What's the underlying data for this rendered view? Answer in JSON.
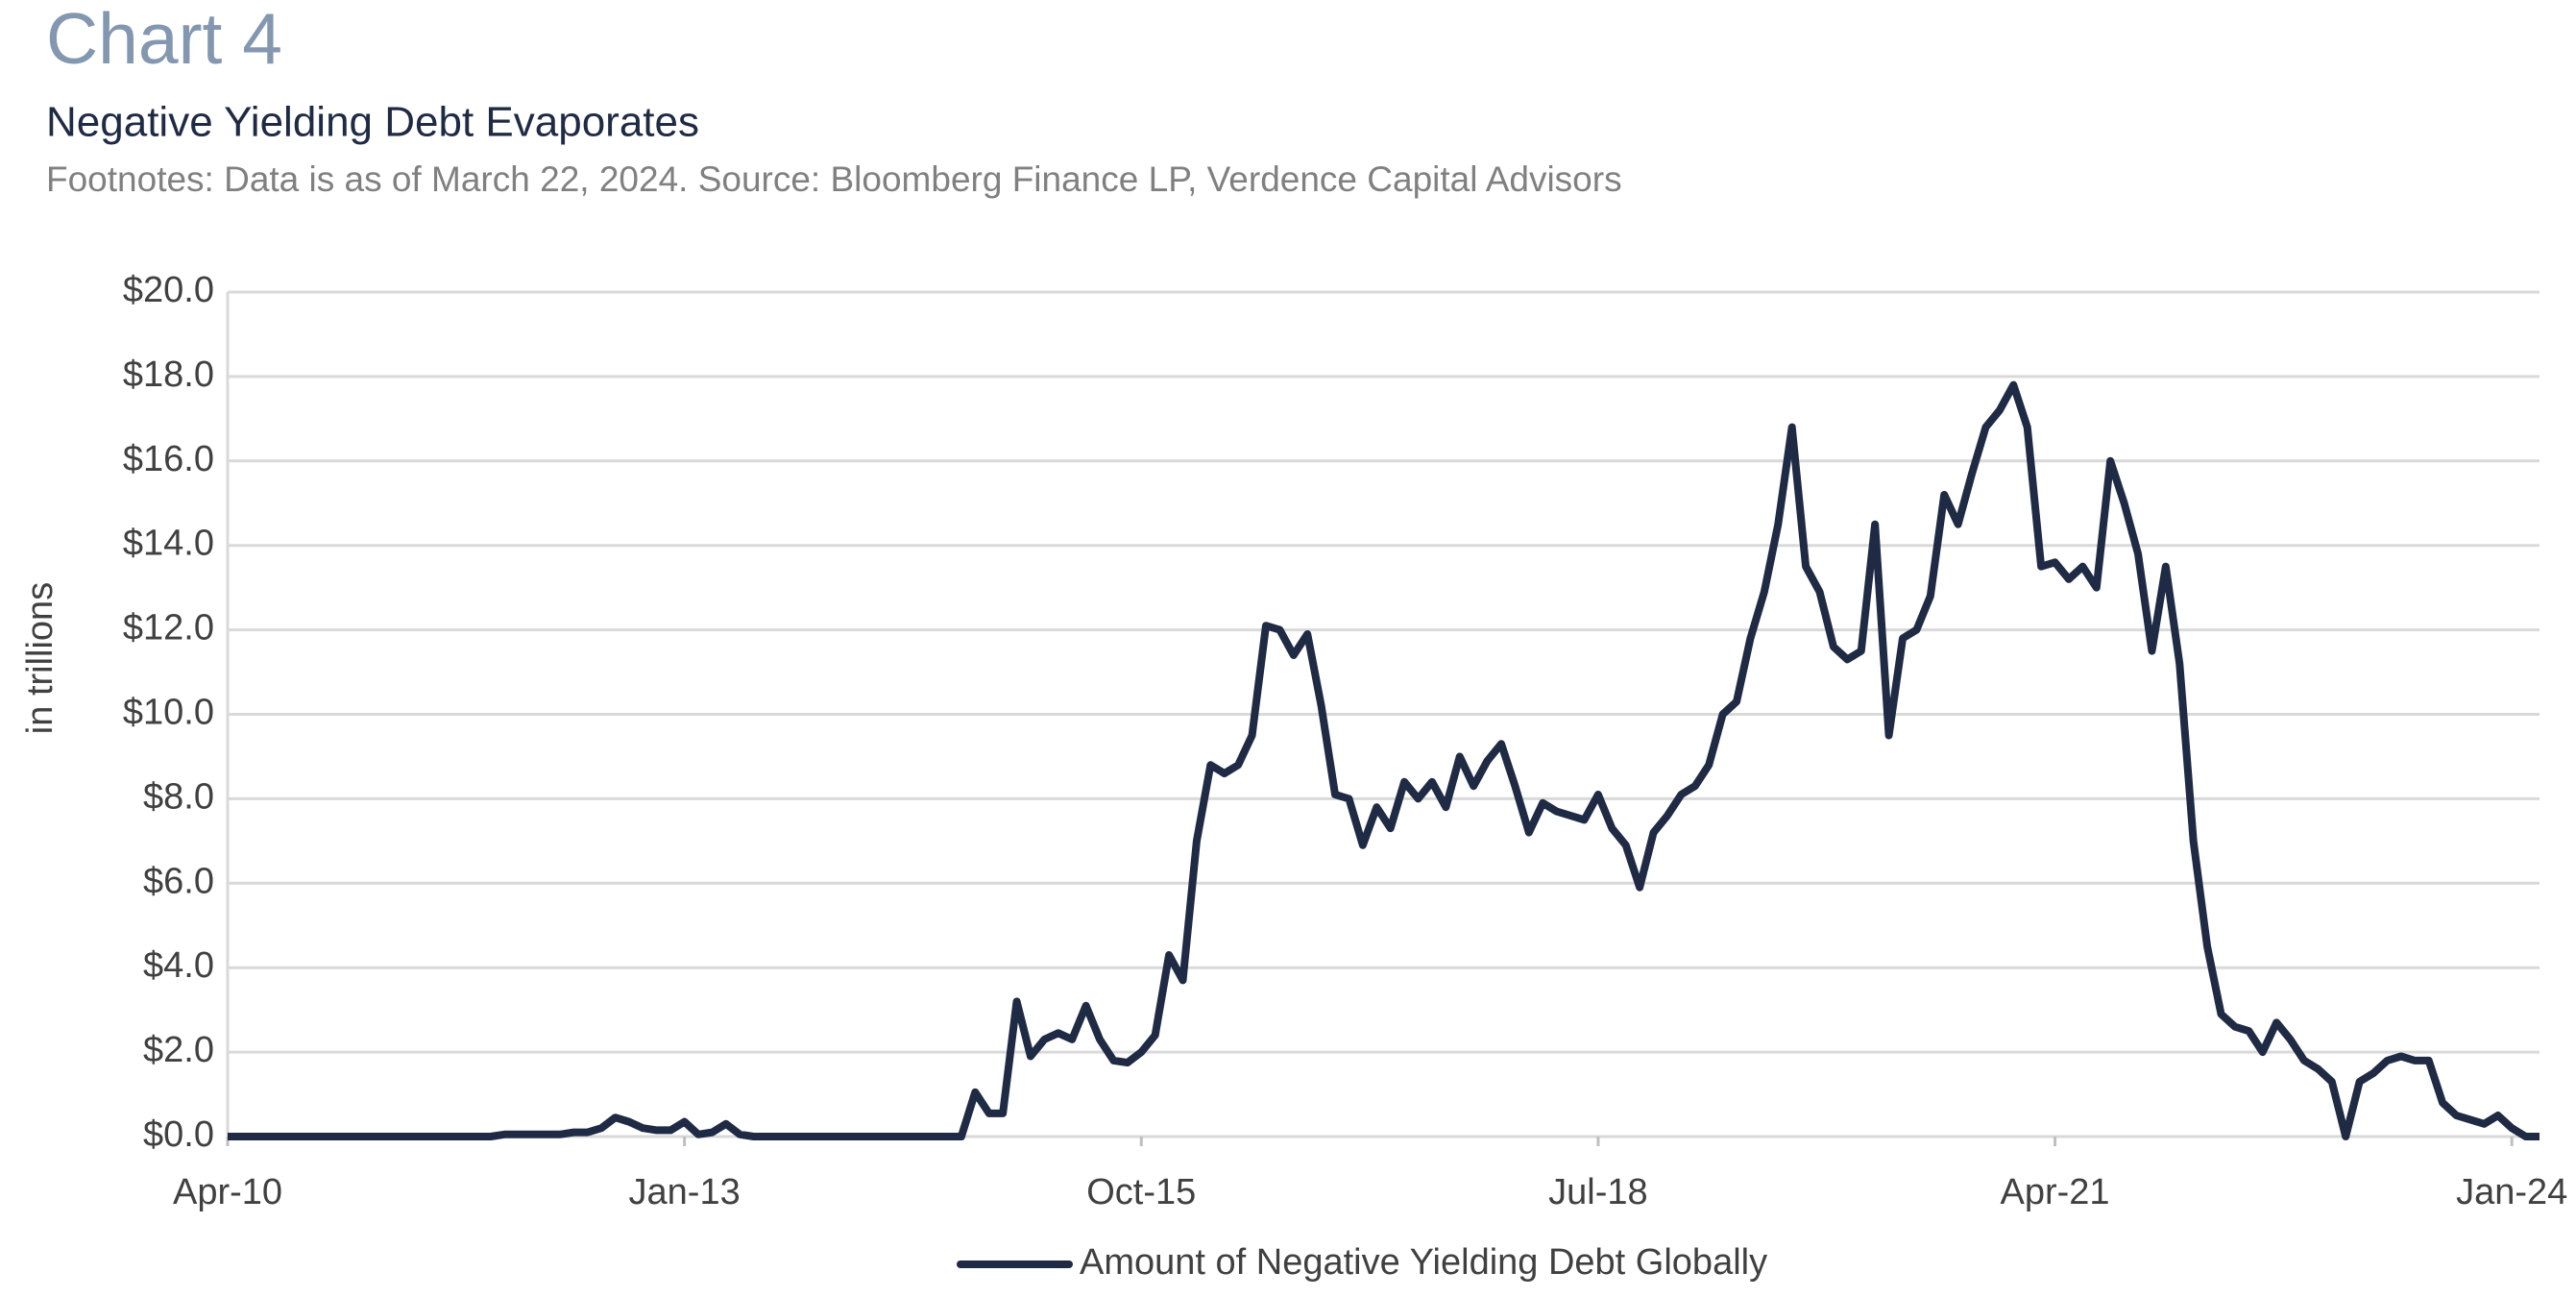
{
  "chart_data": {
    "type": "line",
    "title": "Chart 4",
    "subtitle": "Negative Yielding Debt Evaporates",
    "footnote": "Footnotes: Data is as of March 22, 2024. Source: Bloomberg Finance LP, Verdence Capital Advisors",
    "y_label": "in trillions",
    "x": [
      "2010-04",
      "2010-05",
      "2010-06",
      "2010-07",
      "2010-08",
      "2010-09",
      "2010-10",
      "2010-11",
      "2010-12",
      "2011-01",
      "2011-02",
      "2011-03",
      "2011-04",
      "2011-05",
      "2011-06",
      "2011-07",
      "2011-08",
      "2011-09",
      "2011-10",
      "2011-11",
      "2011-12",
      "2012-01",
      "2012-02",
      "2012-03",
      "2012-04",
      "2012-05",
      "2012-06",
      "2012-07",
      "2012-08",
      "2012-09",
      "2012-10",
      "2012-11",
      "2012-12",
      "2013-01",
      "2013-02",
      "2013-03",
      "2013-04",
      "2013-05",
      "2013-06",
      "2013-07",
      "2013-08",
      "2013-09",
      "2013-10",
      "2013-11",
      "2013-12",
      "2014-01",
      "2014-02",
      "2014-03",
      "2014-04",
      "2014-05",
      "2014-06",
      "2014-07",
      "2014-08",
      "2014-09",
      "2014-10",
      "2014-11",
      "2014-12",
      "2015-01",
      "2015-02",
      "2015-03",
      "2015-04",
      "2015-05",
      "2015-06",
      "2015-07",
      "2015-08",
      "2015-09",
      "2015-10",
      "2015-11",
      "2015-12",
      "2016-01",
      "2016-02",
      "2016-03",
      "2016-04",
      "2016-05",
      "2016-06",
      "2016-07",
      "2016-08",
      "2016-09",
      "2016-10",
      "2016-11",
      "2016-12",
      "2017-01",
      "2017-02",
      "2017-03",
      "2017-04",
      "2017-05",
      "2017-06",
      "2017-07",
      "2017-08",
      "2017-09",
      "2017-10",
      "2017-11",
      "2017-12",
      "2018-01",
      "2018-02",
      "2018-03",
      "2018-04",
      "2018-05",
      "2018-06",
      "2018-07",
      "2018-08",
      "2018-09",
      "2018-10",
      "2018-11",
      "2018-12",
      "2019-01",
      "2019-02",
      "2019-03",
      "2019-04",
      "2019-05",
      "2019-06",
      "2019-07",
      "2019-08",
      "2019-09",
      "2019-10",
      "2019-11",
      "2019-12",
      "2020-01",
      "2020-02",
      "2020-03",
      "2020-04",
      "2020-05",
      "2020-06",
      "2020-07",
      "2020-08",
      "2020-09",
      "2020-10",
      "2020-11",
      "2020-12",
      "2021-01",
      "2021-02",
      "2021-03",
      "2021-04",
      "2021-05",
      "2021-06",
      "2021-07",
      "2021-08",
      "2021-09",
      "2021-10",
      "2021-11",
      "2021-12",
      "2022-01",
      "2022-02",
      "2022-03",
      "2022-04",
      "2022-05",
      "2022-06",
      "2022-07",
      "2022-08",
      "2022-09",
      "2022-10",
      "2022-11",
      "2022-12",
      "2023-01",
      "2023-02",
      "2023-03",
      "2023-04",
      "2023-05",
      "2023-06",
      "2023-07",
      "2023-08",
      "2023-09",
      "2023-10",
      "2023-11",
      "2023-12",
      "2024-01",
      "2024-02",
      "2024-03"
    ],
    "series": [
      {
        "name": "Amount of Negative Yielding Debt Globally",
        "color": "#1f2a44",
        "values": [
          0,
          0,
          0,
          0,
          0,
          0,
          0,
          0,
          0,
          0,
          0,
          0,
          0,
          0,
          0,
          0,
          0,
          0,
          0,
          0,
          0.05,
          0.05,
          0.05,
          0.05,
          0.05,
          0.1,
          0.1,
          0.2,
          0.45,
          0.35,
          0.2,
          0.15,
          0.15,
          0.35,
          0.05,
          0.1,
          0.3,
          0.05,
          0,
          0,
          0,
          0,
          0,
          0,
          0,
          0,
          0,
          0,
          0,
          0,
          0,
          0,
          0,
          0,
          1.05,
          0.55,
          0.55,
          3.2,
          1.9,
          2.3,
          2.45,
          2.3,
          3.1,
          2.3,
          1.8,
          1.75,
          2.0,
          2.4,
          4.3,
          3.7,
          7.0,
          8.8,
          8.6,
          8.8,
          9.5,
          12.1,
          12.0,
          11.4,
          11.9,
          10.2,
          8.1,
          8.0,
          6.9,
          7.8,
          7.3,
          8.4,
          8.0,
          8.4,
          7.8,
          9.0,
          8.3,
          8.9,
          9.3,
          8.3,
          7.2,
          7.9,
          7.7,
          7.6,
          7.5,
          8.1,
          7.3,
          6.9,
          5.9,
          7.2,
          7.6,
          8.1,
          8.3,
          8.8,
          10.0,
          10.3,
          11.8,
          12.9,
          14.5,
          16.8,
          13.5,
          12.9,
          11.6,
          11.3,
          11.5,
          14.5,
          9.5,
          11.8,
          12.0,
          12.8,
          15.2,
          14.5,
          15.7,
          16.8,
          17.2,
          17.8,
          16.8,
          13.5,
          13.6,
          13.2,
          13.5,
          13.0,
          16.0,
          15.0,
          13.8,
          11.5,
          13.5,
          11.2,
          7.0,
          4.5,
          2.9,
          2.6,
          2.5,
          2.0,
          2.7,
          2.3,
          1.8,
          1.6,
          1.3,
          0.0,
          1.3,
          1.5,
          1.8,
          1.9,
          1.8,
          1.8,
          0.8,
          0.5,
          0.4,
          0.3,
          0.5,
          0.2,
          0.0,
          0.0
        ]
      }
    ],
    "xlim": [
      "2010-04",
      "2024-03"
    ],
    "xticks": [
      {
        "value": "2010-04",
        "label": "Apr-10"
      },
      {
        "value": "2013-01",
        "label": "Jan-13"
      },
      {
        "value": "2015-10",
        "label": "Oct-15"
      },
      {
        "value": "2018-07",
        "label": "Jul-18"
      },
      {
        "value": "2021-04",
        "label": "Apr-21"
      },
      {
        "value": "2024-01",
        "label": "Jan-24"
      }
    ],
    "ylim": [
      0,
      20
    ],
    "yticks": [
      {
        "value": 0,
        "label": "$0.0"
      },
      {
        "value": 2,
        "label": "$2.0"
      },
      {
        "value": 4,
        "label": "$4.0"
      },
      {
        "value": 6,
        "label": "$6.0"
      },
      {
        "value": 8,
        "label": "$8.0"
      },
      {
        "value": 10,
        "label": "$10.0"
      },
      {
        "value": 12,
        "label": "$12.0"
      },
      {
        "value": 14,
        "label": "$14.0"
      },
      {
        "value": 16,
        "label": "$16.0"
      },
      {
        "value": 18,
        "label": "$18.0"
      },
      {
        "value": 20,
        "label": "$20.0"
      }
    ],
    "grid": true,
    "legend": "bottom"
  }
}
